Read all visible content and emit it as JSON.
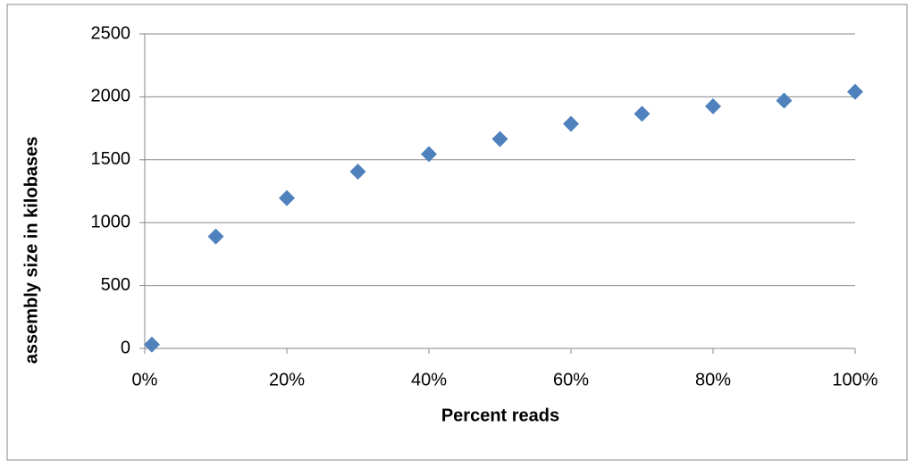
{
  "chart_data": {
    "type": "scatter",
    "x_label": "Percent reads",
    "y_label": "assembly size in kilobases",
    "x": [
      1,
      10,
      20,
      30,
      40,
      50,
      60,
      70,
      80,
      90,
      100
    ],
    "series": [
      {
        "color": "#4f81bd",
        "values": [
          30,
          890,
          1195,
          1405,
          1545,
          1665,
          1785,
          1865,
          1925,
          1970,
          2040
        ]
      }
    ],
    "xlim": [
      0,
      100
    ],
    "xticks": [
      {
        "value": 0,
        "label": "0%"
      },
      {
        "value": 20,
        "label": "20%"
      },
      {
        "value": 40,
        "label": "40%"
      },
      {
        "value": 60,
        "label": "60%"
      },
      {
        "value": 80,
        "label": "80%"
      },
      {
        "value": 100,
        "label": "100%"
      }
    ],
    "ylim": [
      0,
      2500
    ],
    "yticks": [
      0,
      500,
      1000,
      1500,
      2000,
      2500
    ],
    "grid": true
  }
}
